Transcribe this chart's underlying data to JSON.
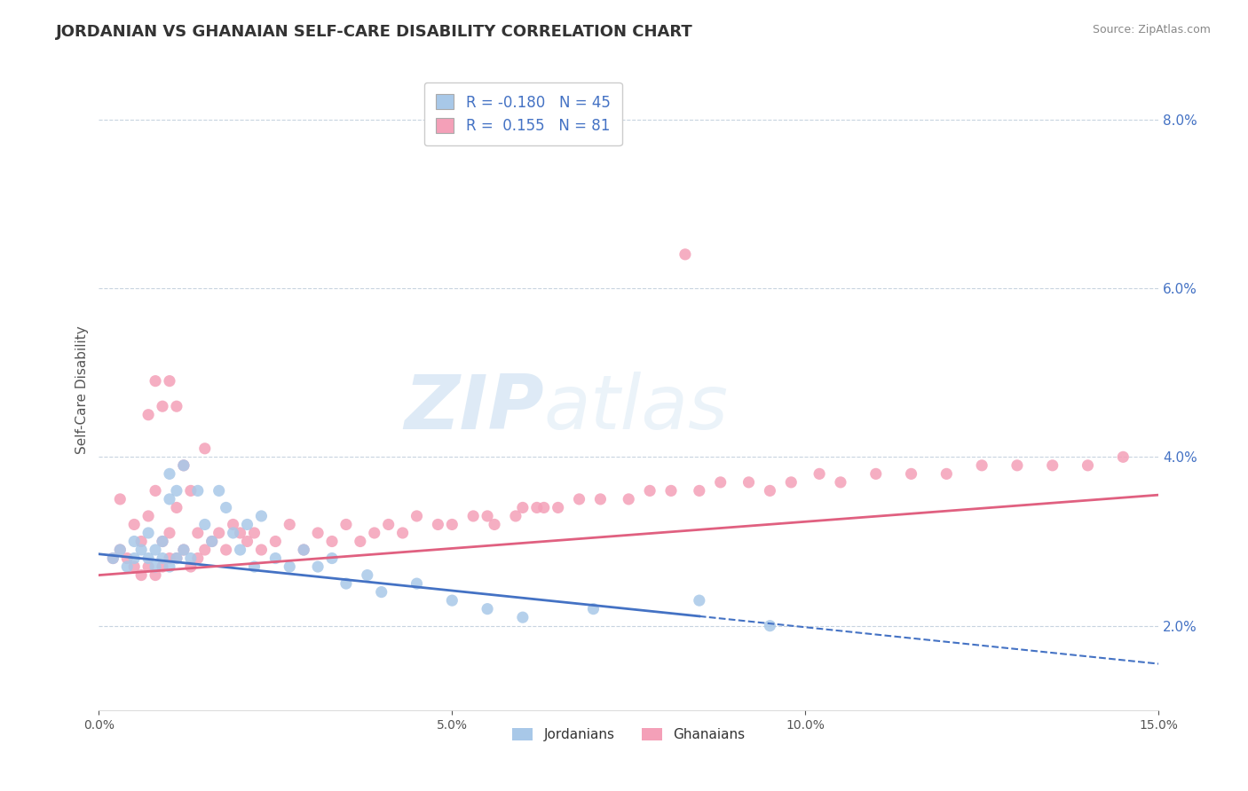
{
  "title": "JORDANIAN VS GHANAIAN SELF-CARE DISABILITY CORRELATION CHART",
  "source": "Source: ZipAtlas.com",
  "ylabel": "Self-Care Disability",
  "xlim": [
    0.0,
    15.0
  ],
  "ylim": [
    1.0,
    8.6
  ],
  "yticks": [
    2.0,
    4.0,
    6.0,
    8.0
  ],
  "xticks": [
    0.0,
    5.0,
    10.0,
    15.0
  ],
  "jordanian_color": "#a8c8e8",
  "ghanaian_color": "#f4a0b8",
  "jordanian_line_color": "#4472c4",
  "ghanaian_line_color": "#e06080",
  "background_color": "#ffffff",
  "grid_color": "#c8d4e0",
  "tick_color": "#4472c4",
  "legend_R1": "-0.180",
  "legend_N1": "45",
  "legend_R2": "0.155",
  "legend_N2": "81",
  "title_fontsize": 13,
  "jordanian_x": [
    0.2,
    0.3,
    0.4,
    0.5,
    0.5,
    0.6,
    0.7,
    0.7,
    0.8,
    0.8,
    0.9,
    0.9,
    1.0,
    1.0,
    1.0,
    1.1,
    1.1,
    1.2,
    1.2,
    1.3,
    1.4,
    1.5,
    1.6,
    1.7,
    1.8,
    1.9,
    2.0,
    2.1,
    2.2,
    2.3,
    2.5,
    2.7,
    2.9,
    3.1,
    3.3,
    3.5,
    3.8,
    4.0,
    4.5,
    5.0,
    5.5,
    6.0,
    7.0,
    8.5,
    9.5
  ],
  "jordanian_y": [
    2.8,
    2.9,
    2.7,
    2.8,
    3.0,
    2.9,
    2.8,
    3.1,
    2.7,
    2.9,
    2.8,
    3.0,
    2.7,
    3.5,
    3.8,
    2.8,
    3.6,
    2.9,
    3.9,
    2.8,
    3.6,
    3.2,
    3.0,
    3.6,
    3.4,
    3.1,
    2.9,
    3.2,
    2.7,
    3.3,
    2.8,
    2.7,
    2.9,
    2.7,
    2.8,
    2.5,
    2.6,
    2.4,
    2.5,
    2.3,
    2.2,
    2.1,
    2.2,
    2.3,
    2.0
  ],
  "ghanaian_x": [
    0.2,
    0.3,
    0.3,
    0.4,
    0.5,
    0.5,
    0.6,
    0.6,
    0.7,
    0.7,
    0.7,
    0.8,
    0.8,
    0.8,
    0.9,
    0.9,
    0.9,
    1.0,
    1.0,
    1.0,
    1.1,
    1.1,
    1.1,
    1.2,
    1.2,
    1.3,
    1.3,
    1.4,
    1.4,
    1.5,
    1.5,
    1.6,
    1.7,
    1.8,
    1.9,
    2.0,
    2.1,
    2.2,
    2.3,
    2.5,
    2.7,
    2.9,
    3.1,
    3.3,
    3.5,
    3.7,
    3.9,
    4.1,
    4.3,
    4.5,
    4.8,
    5.0,
    5.3,
    5.6,
    5.9,
    6.2,
    6.5,
    6.8,
    7.1,
    7.5,
    7.8,
    8.1,
    8.5,
    8.8,
    9.2,
    9.5,
    9.8,
    10.2,
    10.5,
    11.0,
    11.5,
    12.0,
    12.5,
    13.0,
    13.5,
    14.0,
    14.5,
    5.5,
    6.0,
    6.3,
    8.3
  ],
  "ghanaian_y": [
    2.8,
    2.9,
    3.5,
    2.8,
    2.7,
    3.2,
    2.6,
    3.0,
    2.7,
    3.3,
    4.5,
    2.6,
    3.6,
    4.9,
    2.7,
    3.0,
    4.6,
    2.8,
    3.1,
    4.9,
    2.8,
    3.4,
    4.6,
    2.9,
    3.9,
    2.7,
    3.6,
    2.8,
    3.1,
    2.9,
    4.1,
    3.0,
    3.1,
    2.9,
    3.2,
    3.1,
    3.0,
    3.1,
    2.9,
    3.0,
    3.2,
    2.9,
    3.1,
    3.0,
    3.2,
    3.0,
    3.1,
    3.2,
    3.1,
    3.3,
    3.2,
    3.2,
    3.3,
    3.2,
    3.3,
    3.4,
    3.4,
    3.5,
    3.5,
    3.5,
    3.6,
    3.6,
    3.6,
    3.7,
    3.7,
    3.6,
    3.7,
    3.8,
    3.7,
    3.8,
    3.8,
    3.8,
    3.9,
    3.9,
    3.9,
    3.9,
    4.0,
    3.3,
    3.4,
    3.4,
    6.4
  ],
  "jordanian_trend_x": [
    0.0,
    15.0
  ],
  "jordanian_trend_y_start": 2.85,
  "jordanian_trend_y_end": 1.55,
  "jordanian_solid_end": 8.5,
  "ghanaian_trend_x": [
    0.0,
    15.0
  ],
  "ghanaian_trend_y_start": 2.6,
  "ghanaian_trend_y_end": 3.55
}
